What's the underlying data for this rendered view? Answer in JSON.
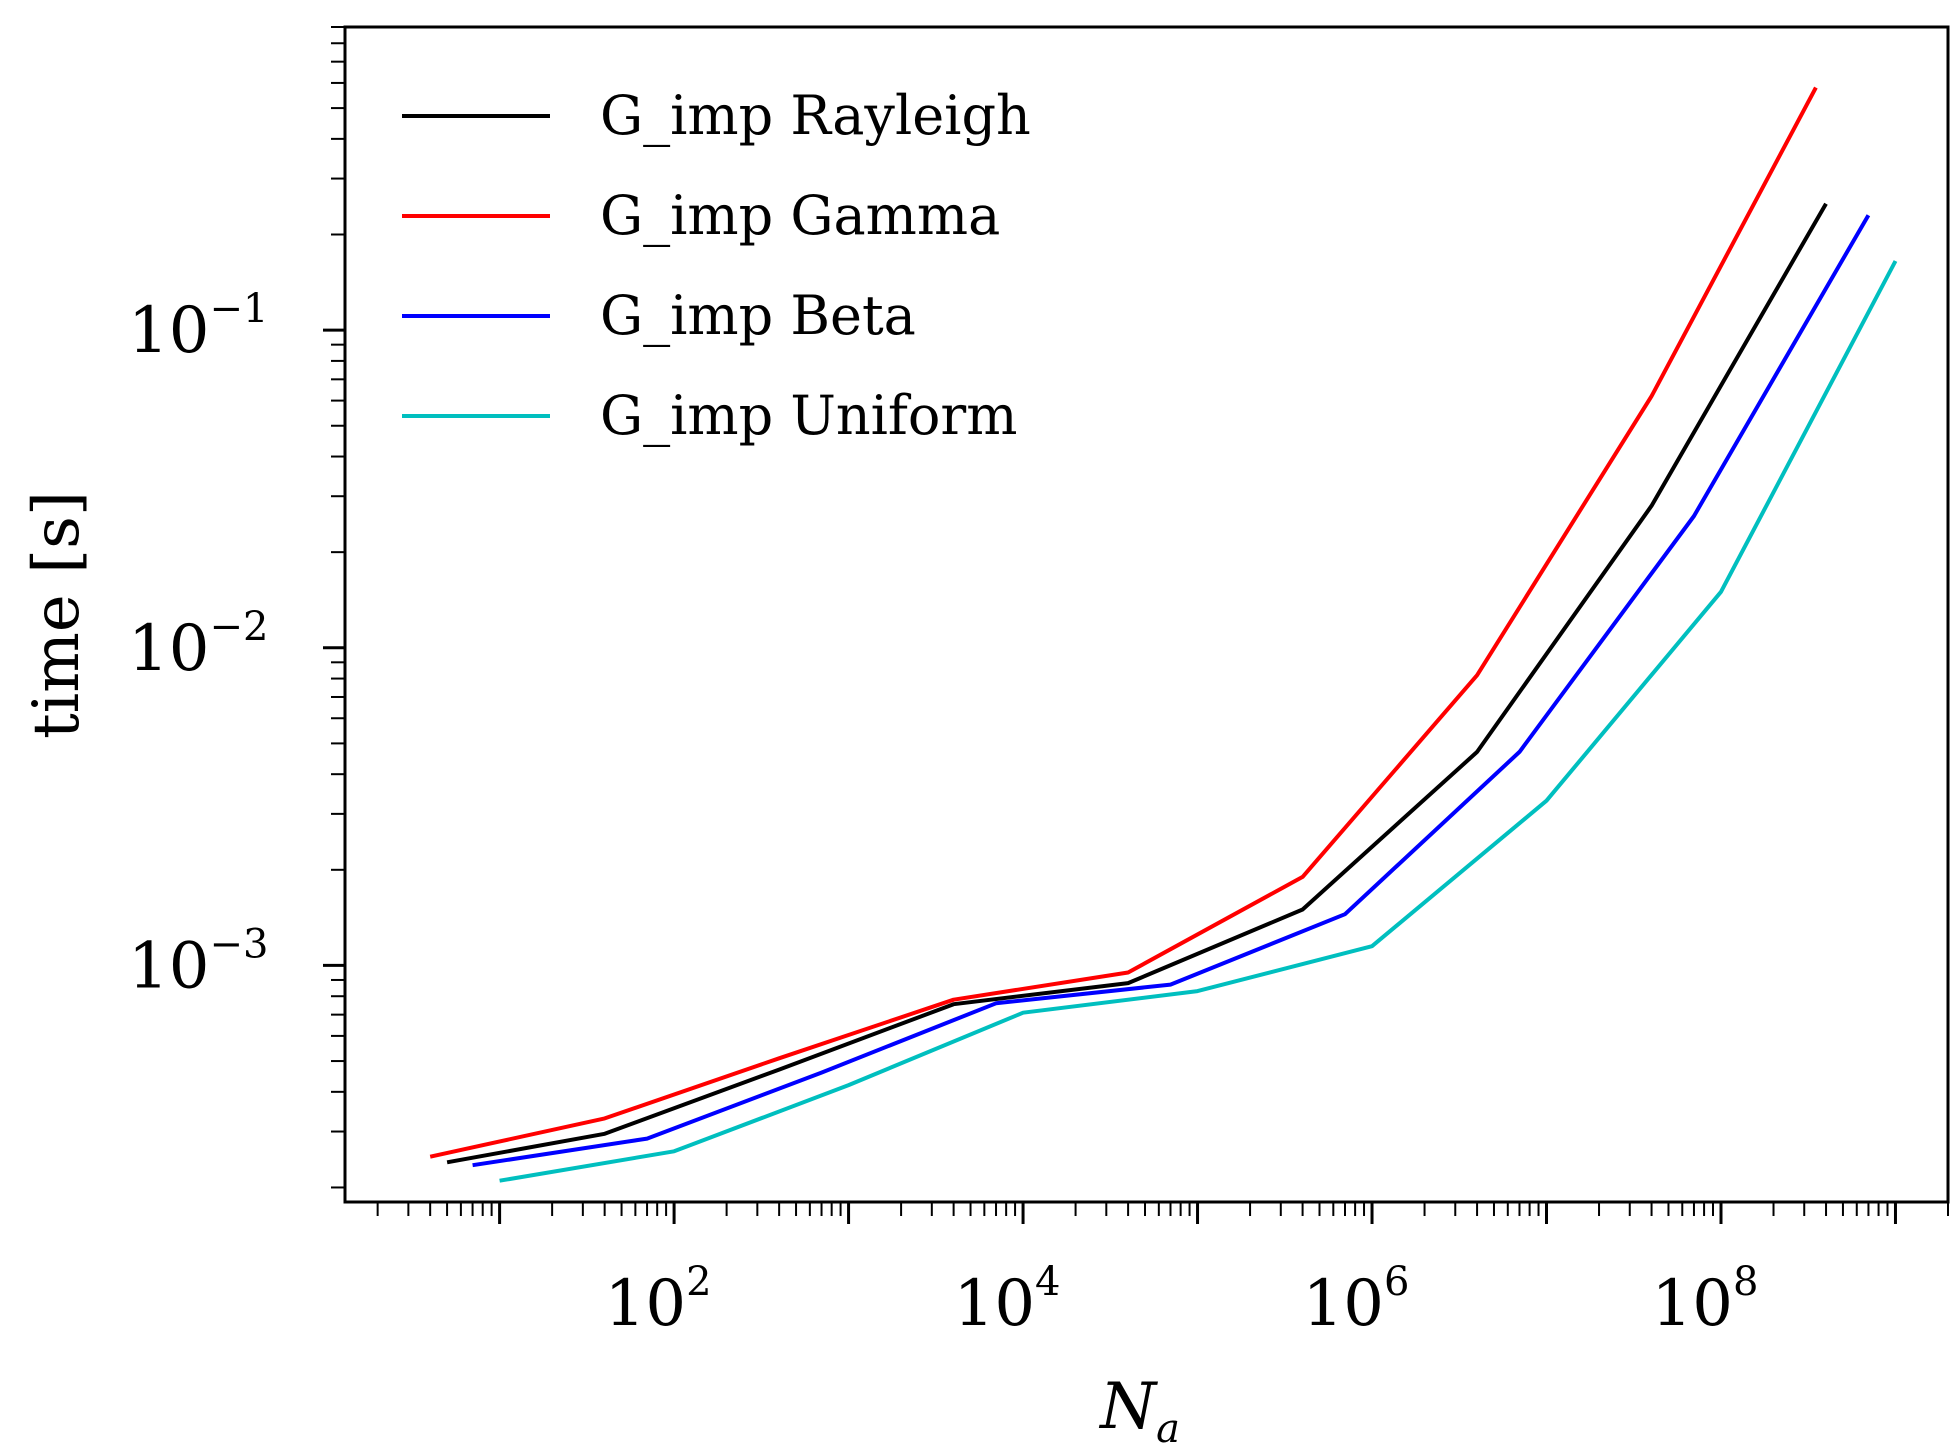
{
  "chart_data": {
    "type": "line",
    "title": "",
    "xlabel": "N",
    "xlabel_sub": "a",
    "ylabel": "time [s]",
    "xscale": "log",
    "yscale": "log",
    "xlim": [
      1.3,
      2000000000
    ],
    "ylim": [
      0.00018,
      0.9
    ],
    "x_ticks": [
      {
        "base": "10",
        "exp": "2",
        "value": 100
      },
      {
        "base": "10",
        "exp": "4",
        "value": 10000
      },
      {
        "base": "10",
        "exp": "6",
        "value": 1000000
      },
      {
        "base": "10",
        "exp": "8",
        "value": 100000000
      }
    ],
    "y_ticks": [
      {
        "base": "10",
        "exp": "−3",
        "value": 0.001
      },
      {
        "base": "10",
        "exp": "−2",
        "value": 0.01
      },
      {
        "base": "10",
        "exp": "−1",
        "value": 0.1
      }
    ],
    "legend_position": "top-left",
    "series": [
      {
        "name": "G_imp Rayleigh",
        "color": "#000000",
        "x": [
          5,
          40,
          400,
          4000,
          40000,
          400000,
          4000000,
          40000000,
          400000000
        ],
        "y": [
          0.00024,
          0.000295,
          0.00047,
          0.000755,
          0.00088,
          0.0015,
          0.0047,
          0.028,
          0.25
        ]
      },
      {
        "name": "G_imp Gamma",
        "color": "#ff0000",
        "x": [
          4,
          40,
          400,
          4000,
          40000,
          400000,
          4000000,
          40000000,
          350000000
        ],
        "y": [
          0.00025,
          0.00033,
          0.00051,
          0.00078,
          0.00095,
          0.0019,
          0.0082,
          0.062,
          0.58
        ]
      },
      {
        "name": "G_imp Beta",
        "color": "#0000ff",
        "x": [
          7,
          70,
          700,
          7000,
          70000,
          700000,
          7000000,
          70000000,
          700000000
        ],
        "y": [
          0.000235,
          0.000285,
          0.00046,
          0.00076,
          0.00087,
          0.00145,
          0.0047,
          0.026,
          0.23
        ]
      },
      {
        "name": "G_imp Uniform",
        "color": "#00bfbf",
        "x": [
          10,
          100,
          1000,
          10000,
          100000,
          1000000,
          10000000,
          100000000,
          1000000000
        ],
        "y": [
          0.00021,
          0.00026,
          0.00042,
          0.00071,
          0.00083,
          0.00115,
          0.0033,
          0.015,
          0.165
        ]
      }
    ]
  }
}
